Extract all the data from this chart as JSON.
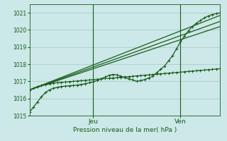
{
  "xlabel": "Pression niveau de la mer( hPa )",
  "ylim": [
    1015,
    1021.5
  ],
  "xlim": [
    0,
    48
  ],
  "bg_color": "#cce8e8",
  "grid_color": "#aacccc",
  "line_color": "#1a5c1a",
  "day_labels": [
    [
      "Jeu",
      16
    ],
    [
      "Ven",
      38
    ]
  ],
  "day_vlines": [
    16,
    38
  ],
  "yticks": [
    1015,
    1016,
    1017,
    1018,
    1019,
    1020,
    1021
  ],
  "series": [
    {
      "x": [
        0,
        1,
        2,
        3,
        4,
        5,
        6,
        7,
        8,
        9,
        10,
        11,
        12,
        13,
        14,
        15,
        16,
        17,
        18,
        19,
        20,
        21,
        22,
        23,
        24,
        25,
        26,
        27,
        28,
        29,
        30,
        31,
        32,
        33,
        34,
        35,
        36,
        37,
        38,
        39,
        40,
        41,
        42,
        43,
        44,
        45,
        46,
        47,
        48
      ],
      "y": [
        1016.5,
        1016.6,
        1016.7,
        1016.75,
        1016.8,
        1016.85,
        1016.9,
        1016.92,
        1016.94,
        1016.96,
        1016.98,
        1017.0,
        1017.02,
        1017.04,
        1017.06,
        1017.08,
        1017.1,
        1017.12,
        1017.14,
        1017.16,
        1017.18,
        1017.2,
        1017.22,
        1017.24,
        1017.26,
        1017.28,
        1017.3,
        1017.32,
        1017.34,
        1017.36,
        1017.38,
        1017.4,
        1017.42,
        1017.44,
        1017.46,
        1017.48,
        1017.5,
        1017.52,
        1017.54,
        1017.56,
        1017.58,
        1017.6,
        1017.62,
        1017.64,
        1017.66,
        1017.68,
        1017.7,
        1017.72,
        1017.74
      ],
      "marker": true,
      "lw": 0.8
    },
    {
      "x": [
        0,
        48
      ],
      "y": [
        1016.5,
        1020.2
      ],
      "marker": false,
      "lw": 0.9
    },
    {
      "x": [
        0,
        48
      ],
      "y": [
        1016.5,
        1020.5
      ],
      "marker": false,
      "lw": 0.9
    },
    {
      "x": [
        0,
        48
      ],
      "y": [
        1016.5,
        1020.85
      ],
      "marker": false,
      "lw": 0.9
    },
    {
      "x": [
        0,
        1,
        2,
        3,
        4,
        5,
        6,
        7,
        8,
        9,
        10,
        11,
        12,
        13,
        14,
        15,
        16,
        17,
        18,
        19,
        20,
        21,
        22,
        23,
        24,
        25,
        26,
        27,
        28,
        29,
        30,
        31,
        32,
        33,
        34,
        35,
        36,
        37,
        38,
        39,
        40,
        41,
        42,
        43,
        44,
        45,
        46,
        47,
        48
      ],
      "y": [
        1015.2,
        1015.5,
        1015.8,
        1016.1,
        1016.35,
        1016.5,
        1016.6,
        1016.65,
        1016.7,
        1016.72,
        1016.74,
        1016.76,
        1016.78,
        1016.82,
        1016.86,
        1016.92,
        1016.97,
        1017.05,
        1017.15,
        1017.25,
        1017.35,
        1017.4,
        1017.38,
        1017.3,
        1017.22,
        1017.15,
        1017.08,
        1017.0,
        1017.05,
        1017.1,
        1017.2,
        1017.3,
        1017.5,
        1017.7,
        1017.9,
        1018.2,
        1018.5,
        1018.9,
        1019.3,
        1019.65,
        1019.95,
        1020.2,
        1020.4,
        1020.55,
        1020.7,
        1020.82,
        1020.9,
        1020.95,
        1021.0
      ],
      "marker": true,
      "lw": 0.9
    }
  ]
}
